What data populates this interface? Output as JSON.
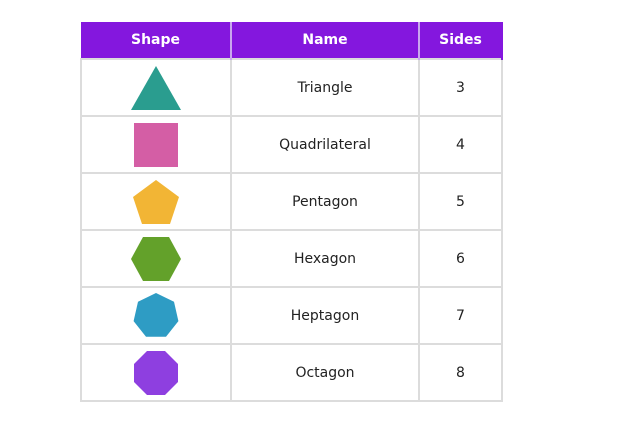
{
  "table": {
    "header": [
      "Shape",
      "Name",
      "Sides"
    ],
    "rows": [
      [
        "Triangle",
        "3"
      ],
      [
        "Quadrilateral",
        "4"
      ],
      [
        "Pentagon",
        "5"
      ],
      [
        "Hexagon",
        "6"
      ],
      [
        "Heptagon",
        "7"
      ],
      [
        "Octagon",
        "8"
      ]
    ]
  }
}
